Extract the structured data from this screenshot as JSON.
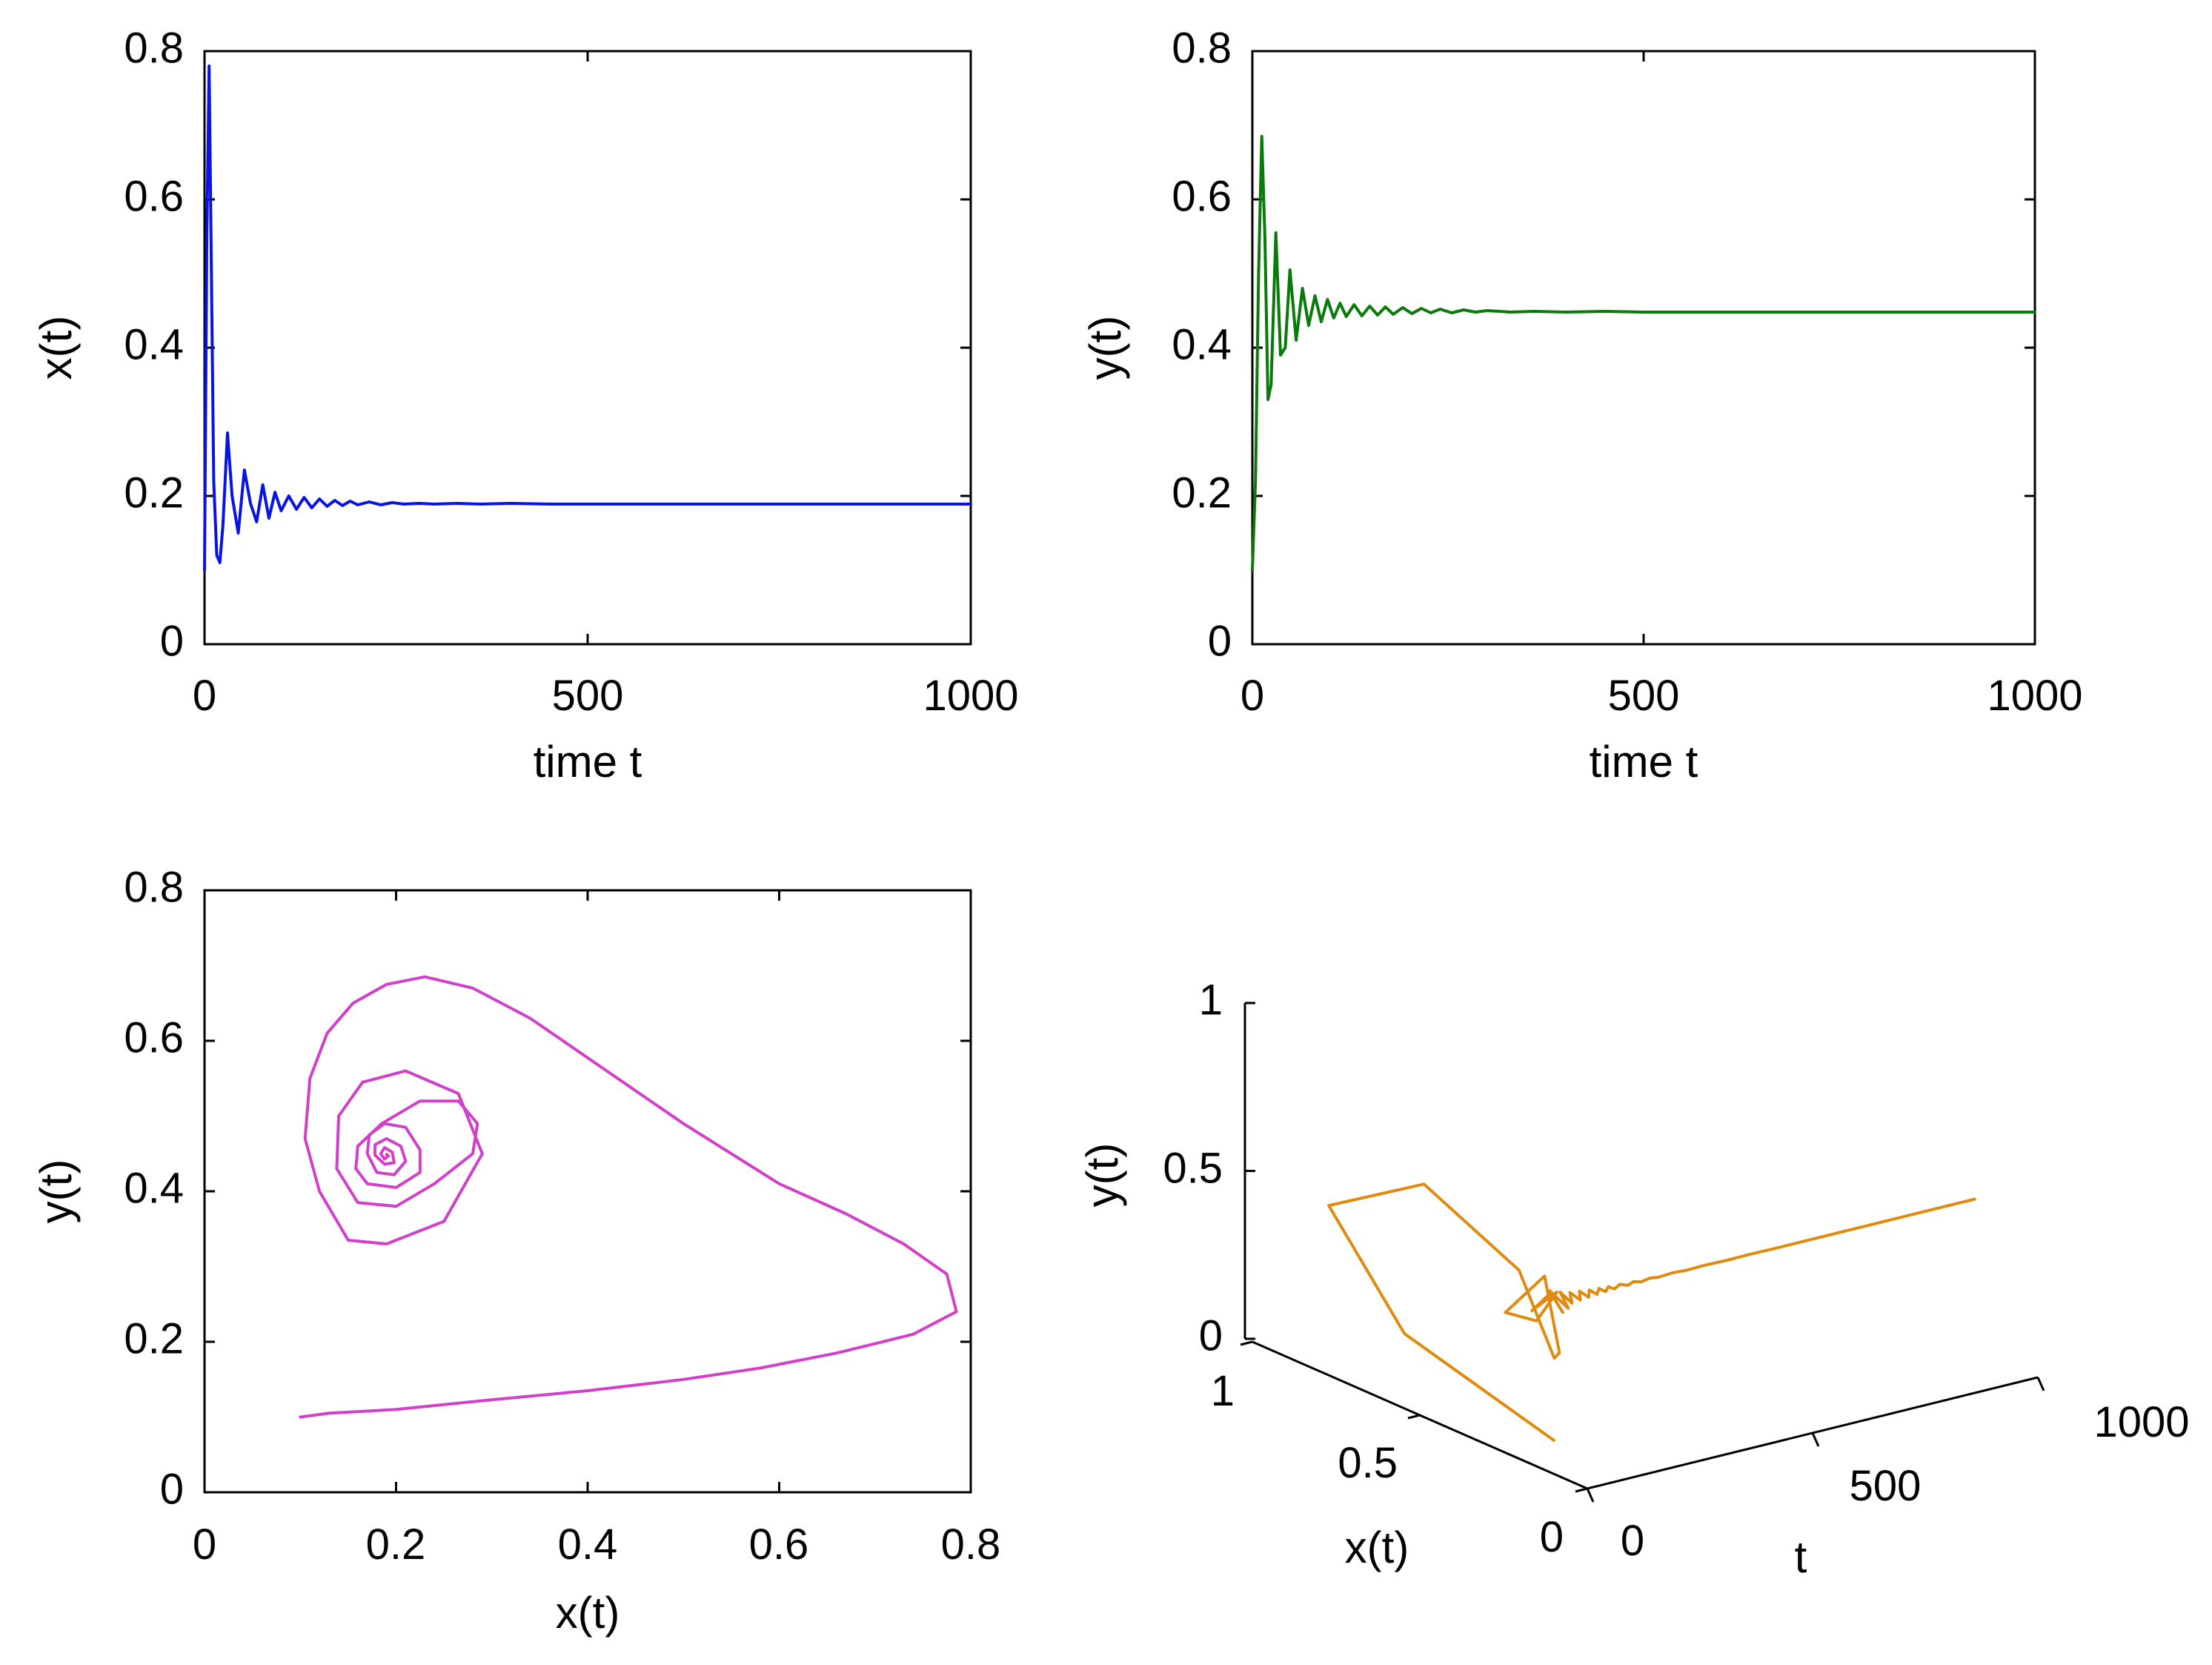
{
  "chart_data": [
    {
      "type": "line",
      "name": "x-vs-time",
      "xlabel": "time t",
      "ylabel": "x(t)",
      "xlim": [
        0,
        1000
      ],
      "ylim": [
        0,
        0.8
      ],
      "xticks": [
        0,
        500,
        1000
      ],
      "xtick_labels": [
        "0",
        "500",
        "1000"
      ],
      "yticks": [
        0,
        0.2,
        0.4,
        0.6,
        0.8
      ],
      "ytick_labels": [
        "0",
        "0.2",
        "0.4",
        "0.6",
        "0.8"
      ],
      "color": "#0a14e0",
      "series": [
        {
          "name": "x(t)",
          "x": [
            0,
            3,
            6,
            9,
            12,
            16,
            20,
            24,
            30,
            36,
            44,
            52,
            60,
            68,
            76,
            84,
            92,
            100,
            110,
            120,
            130,
            140,
            150,
            160,
            170,
            180,
            190,
            200,
            215,
            230,
            245,
            260,
            280,
            300,
            330,
            360,
            400,
            450,
            500,
            600,
            700,
            800,
            900,
            1000
          ],
          "values": [
            0.1,
            0.55,
            0.78,
            0.5,
            0.22,
            0.12,
            0.11,
            0.16,
            0.285,
            0.2,
            0.15,
            0.235,
            0.19,
            0.165,
            0.215,
            0.17,
            0.205,
            0.18,
            0.2,
            0.182,
            0.198,
            0.184,
            0.196,
            0.186,
            0.194,
            0.187,
            0.193,
            0.188,
            0.192,
            0.188,
            0.191,
            0.189,
            0.19,
            0.189,
            0.19,
            0.189,
            0.19,
            0.189,
            0.189,
            0.189,
            0.189,
            0.189,
            0.189,
            0.189
          ]
        }
      ]
    },
    {
      "type": "line",
      "name": "y-vs-time",
      "xlabel": "time t",
      "ylabel": "y(t)",
      "xlim": [
        0,
        1000
      ],
      "ylim": [
        0,
        0.8
      ],
      "xticks": [
        0,
        500,
        1000
      ],
      "xtick_labels": [
        "0",
        "500",
        "1000"
      ],
      "yticks": [
        0,
        0.2,
        0.4,
        0.6,
        0.8
      ],
      "ytick_labels": [
        "0",
        "0.2",
        "0.4",
        "0.6",
        "0.8"
      ],
      "color": "#0a7a0a",
      "series": [
        {
          "name": "y(t)",
          "x": [
            0,
            4,
            8,
            12,
            16,
            20,
            24,
            30,
            36,
            42,
            48,
            56,
            64,
            72,
            80,
            88,
            96,
            104,
            112,
            120,
            130,
            140,
            150,
            160,
            170,
            180,
            192,
            204,
            216,
            228,
            240,
            255,
            270,
            285,
            300,
            330,
            360,
            400,
            450,
            500,
            600,
            700,
            800,
            900,
            1000
          ],
          "values": [
            0.1,
            0.22,
            0.5,
            0.685,
            0.55,
            0.33,
            0.35,
            0.555,
            0.39,
            0.4,
            0.505,
            0.41,
            0.48,
            0.43,
            0.47,
            0.435,
            0.465,
            0.44,
            0.46,
            0.442,
            0.458,
            0.443,
            0.456,
            0.444,
            0.455,
            0.445,
            0.454,
            0.446,
            0.453,
            0.447,
            0.452,
            0.447,
            0.451,
            0.448,
            0.45,
            0.448,
            0.449,
            0.448,
            0.449,
            0.448,
            0.448,
            0.448,
            0.448,
            0.448,
            0.448
          ]
        }
      ]
    },
    {
      "type": "line",
      "name": "phase-portrait",
      "xlabel": "x(t)",
      "ylabel": "y(t)",
      "xlim": [
        0,
        0.8
      ],
      "ylim": [
        0,
        0.8
      ],
      "xticks": [
        0,
        0.2,
        0.4,
        0.6,
        0.8
      ],
      "xtick_labels": [
        "0",
        "0.2",
        "0.4",
        "0.6",
        "0.8"
      ],
      "yticks": [
        0,
        0.2,
        0.4,
        0.6,
        0.8
      ],
      "ytick_labels": [
        "0",
        "0.2",
        "0.4",
        "0.6",
        "0.8"
      ],
      "color": "#d040c8",
      "series": [
        {
          "name": "trajectory",
          "x": [
            0.1,
            0.13,
            0.2,
            0.3,
            0.4,
            0.5,
            0.58,
            0.66,
            0.74,
            0.785,
            0.775,
            0.73,
            0.67,
            0.6,
            0.5,
            0.42,
            0.34,
            0.28,
            0.23,
            0.19,
            0.155,
            0.128,
            0.11,
            0.105,
            0.12,
            0.15,
            0.19,
            0.25,
            0.29,
            0.265,
            0.21,
            0.165,
            0.14,
            0.138,
            0.16,
            0.2,
            0.24,
            0.28,
            0.285,
            0.265,
            0.225,
            0.185,
            0.16,
            0.158,
            0.17,
            0.2,
            0.225,
            0.225,
            0.21,
            0.188,
            0.172,
            0.17,
            0.18,
            0.198,
            0.21,
            0.205,
            0.19,
            0.178,
            0.178,
            0.188,
            0.198,
            0.196,
            0.188,
            0.184,
            0.188,
            0.192,
            0.19
          ],
          "values": [
            0.1,
            0.105,
            0.11,
            0.123,
            0.135,
            0.15,
            0.165,
            0.185,
            0.21,
            0.24,
            0.29,
            0.33,
            0.37,
            0.41,
            0.49,
            0.56,
            0.63,
            0.67,
            0.685,
            0.675,
            0.65,
            0.61,
            0.55,
            0.47,
            0.4,
            0.335,
            0.33,
            0.36,
            0.45,
            0.53,
            0.56,
            0.545,
            0.5,
            0.43,
            0.385,
            0.38,
            0.41,
            0.45,
            0.49,
            0.52,
            0.52,
            0.49,
            0.46,
            0.43,
            0.41,
            0.405,
            0.425,
            0.455,
            0.485,
            0.49,
            0.475,
            0.45,
            0.425,
            0.422,
            0.44,
            0.46,
            0.47,
            0.462,
            0.448,
            0.436,
            0.438,
            0.452,
            0.458,
            0.45,
            0.443,
            0.447,
            0.449
          ]
        }
      ]
    },
    {
      "type": "line",
      "name": "3d-trajectory",
      "xlabel": "t",
      "ylabel": "x(t)",
      "zlabel": "y(t)",
      "xlim": [
        0,
        1000
      ],
      "ylim": [
        0,
        1
      ],
      "zlim": [
        0,
        1
      ],
      "t_ticks": [
        0,
        500,
        1000
      ],
      "t_tick_labels": [
        "0",
        "500",
        "1000"
      ],
      "x_ticks": [
        0,
        0.5,
        1
      ],
      "x_tick_labels": [
        "0",
        "0.5",
        "1"
      ],
      "y_ticks": [
        0,
        0.5,
        1
      ],
      "y_tick_labels": [
        "0",
        "0.5",
        "1"
      ],
      "color": "#e08a10",
      "series": [
        {
          "name": "trajectory",
          "t": [
            0,
            3,
            6,
            9,
            12,
            16,
            20,
            24,
            30,
            36,
            44,
            52,
            60,
            68,
            76,
            84,
            92,
            100,
            110,
            120,
            130,
            140,
            150,
            160,
            170,
            180,
            190,
            200,
            215,
            230,
            245,
            260,
            280,
            300,
            330,
            360,
            400,
            450,
            500,
            550,
            600,
            650,
            700,
            750,
            800,
            850,
            900,
            950,
            1000
          ],
          "x": [
            0.1,
            0.55,
            0.78,
            0.5,
            0.22,
            0.12,
            0.11,
            0.16,
            0.285,
            0.2,
            0.15,
            0.235,
            0.19,
            0.165,
            0.215,
            0.17,
            0.205,
            0.18,
            0.2,
            0.182,
            0.198,
            0.184,
            0.196,
            0.186,
            0.194,
            0.187,
            0.193,
            0.188,
            0.192,
            0.188,
            0.191,
            0.189,
            0.19,
            0.189,
            0.19,
            0.189,
            0.19,
            0.189,
            0.189,
            0.189,
            0.189,
            0.189,
            0.189,
            0.189,
            0.189,
            0.189,
            0.189,
            0.189,
            0.189
          ],
          "y": [
            0.1,
            0.22,
            0.5,
            0.685,
            0.55,
            0.33,
            0.35,
            0.555,
            0.39,
            0.4,
            0.505,
            0.41,
            0.48,
            0.43,
            0.47,
            0.435,
            0.465,
            0.44,
            0.46,
            0.442,
            0.458,
            0.443,
            0.456,
            0.444,
            0.455,
            0.445,
            0.454,
            0.446,
            0.453,
            0.447,
            0.452,
            0.447,
            0.451,
            0.448,
            0.45,
            0.448,
            0.449,
            0.448,
            0.449,
            0.448,
            0.448,
            0.448,
            0.448,
            0.448,
            0.448,
            0.448,
            0.448,
            0.448,
            0.448
          ]
        }
      ]
    }
  ]
}
